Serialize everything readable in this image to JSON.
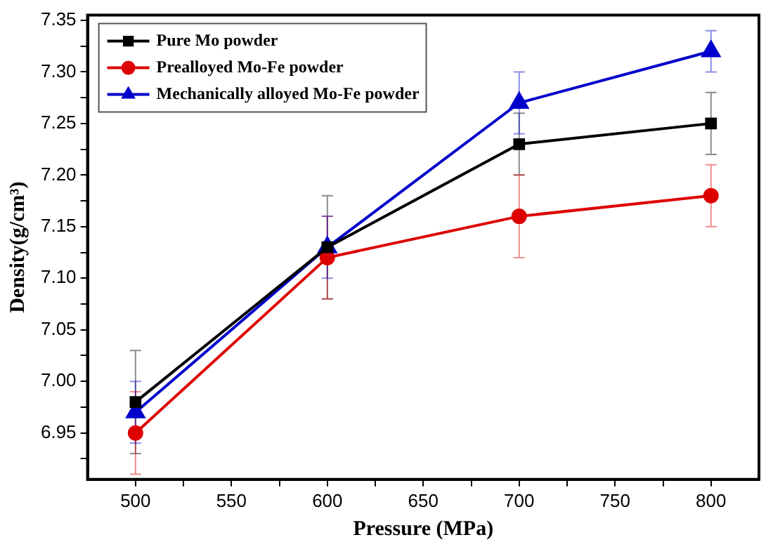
{
  "chart_data": {
    "type": "line",
    "xlabel": "Pressure (MPa)",
    "ylabel": "Density(g/cm³)",
    "x": [
      500,
      600,
      700,
      800
    ],
    "series": [
      {
        "name": "Pure Mo powder",
        "color": "#000000",
        "marker": "square",
        "values": [
          6.98,
          7.13,
          7.23,
          7.25
        ],
        "errors": [
          0.05,
          0.05,
          0.03,
          0.03
        ]
      },
      {
        "name": "Prealloyed Mo-Fe powder",
        "color": "#dd0000",
        "marker": "circle",
        "values": [
          6.95,
          7.12,
          7.16,
          7.18
        ],
        "errors": [
          0.04,
          0.04,
          0.04,
          0.03
        ]
      },
      {
        "name": "Mechanically alloyed Mo-Fe powder",
        "color": "#0000cc",
        "marker": "triangle",
        "values": [
          6.97,
          7.13,
          7.27,
          7.32
        ],
        "errors": [
          0.03,
          0.03,
          0.03,
          0.02
        ]
      }
    ],
    "xlim": [
      475,
      825
    ],
    "xticks": [
      500,
      {
        "value": 525,
        "label": null
      },
      550,
      {
        "value": 575,
        "label": null
      },
      600,
      {
        "value": 625,
        "label": null
      },
      650,
      {
        "value": 675,
        "label": null
      },
      700,
      {
        "value": 725,
        "label": null
      },
      750,
      {
        "value": 775,
        "label": null
      },
      800
    ],
    "ylim": [
      6.905,
      7.355
    ],
    "yticks": [
      {
        "value": 6.925,
        "label": null
      },
      6.95,
      {
        "value": 6.975,
        "label": null
      },
      {
        "value": 7,
        "label": "7.00"
      },
      {
        "value": 7.025,
        "label": null
      },
      7.05,
      {
        "value": 7.075,
        "label": null
      },
      {
        "value": 7.1,
        "label": "7.10"
      },
      {
        "value": 7.125,
        "label": null
      },
      7.15,
      {
        "value": 7.175,
        "label": null
      },
      {
        "value": 7.2,
        "label": "7.20"
      },
      {
        "value": 7.225,
        "label": null
      },
      7.25,
      {
        "value": 7.275,
        "label": null
      },
      {
        "value": 7.3,
        "label": "7.30"
      },
      {
        "value": 7.325,
        "label": null
      },
      7.35
    ],
    "legend": "top left",
    "grid": false,
    "line_style": "solid"
  }
}
